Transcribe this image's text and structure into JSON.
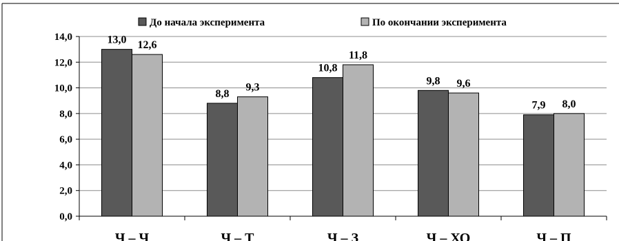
{
  "chart_data": {
    "type": "bar",
    "categories": [
      "Ч – Ч",
      "Ч – Т",
      "Ч – З",
      "Ч – ХО",
      "Ч – П"
    ],
    "series": [
      {
        "name": "До начала эксперимента",
        "values": [
          13.0,
          8.8,
          10.8,
          9.8,
          7.9
        ],
        "labels": [
          "13,0",
          "8,8",
          "10,8",
          "9,8",
          "7,9"
        ],
        "color": "#595959"
      },
      {
        "name": "По окончании эксперимента",
        "values": [
          12.6,
          9.3,
          11.8,
          9.6,
          8.0
        ],
        "labels": [
          "12,6",
          "9,3",
          "11,8",
          "9,6",
          "8,0"
        ],
        "color": "#b3b3b3"
      }
    ],
    "ylim": [
      0,
      14
    ],
    "yticks": [
      0,
      2,
      4,
      6,
      8,
      10,
      12,
      14
    ],
    "ytick_labels": [
      "0,0",
      "2,0",
      "4,0",
      "6,0",
      "8,0",
      "10,0",
      "12,0",
      "14,0"
    ],
    "legend_position": "top",
    "grid": true,
    "title": "",
    "xlabel": "",
    "ylabel": ""
  }
}
